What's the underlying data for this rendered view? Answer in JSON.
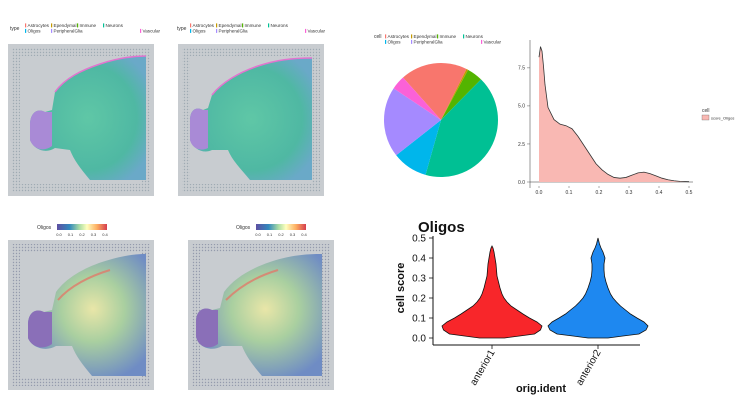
{
  "spatial_type_panels": {
    "legend_title": "type",
    "legend_items": [
      {
        "label": "Astrocytes",
        "color": "#f8766d"
      },
      {
        "label": "Ependymal",
        "color": "#c49a00"
      },
      {
        "label": "Immune",
        "color": "#53b400"
      },
      {
        "label": "Neurons",
        "color": "#00c094"
      },
      {
        "label": "Oligos",
        "color": "#00b6eb"
      },
      {
        "label": "PeripheralGlia",
        "color": "#a58aff"
      },
      {
        "label": "Vascular",
        "color": "#fb61d7"
      }
    ]
  },
  "spatial_score_panels": {
    "legend_title": "Oligos",
    "ticks": [
      "0.0",
      "0.1",
      "0.2",
      "0.3",
      "0.4"
    ]
  },
  "chart_data": [
    {
      "type": "pie",
      "legend_title": "cell",
      "categories": [
        "Astrocytes",
        "Ependymal",
        "Immune",
        "Neurons",
        "Oligos",
        "PeripheralGlia",
        "Vascular"
      ],
      "values": [
        0.19,
        0.005,
        0.045,
        0.42,
        0.1,
        0.2,
        0.04
      ],
      "colors": [
        "#f8766d",
        "#c49a00",
        "#53b400",
        "#00c094",
        "#00b6eb",
        "#a58aff",
        "#fb61d7"
      ]
    },
    {
      "type": "area",
      "legend_title": "cell",
      "series": [
        {
          "name": "score_Oligos",
          "x": [
            0.0,
            0.005,
            0.01,
            0.015,
            0.02,
            0.03,
            0.05,
            0.07,
            0.09,
            0.11,
            0.13,
            0.15,
            0.17,
            0.19,
            0.21,
            0.23,
            0.25,
            0.27,
            0.29,
            0.31,
            0.33,
            0.35,
            0.37,
            0.39,
            0.41,
            0.43,
            0.45,
            0.47,
            0.5
          ],
          "y": [
            8.2,
            8.9,
            8.6,
            7.6,
            6.4,
            4.9,
            4.1,
            3.8,
            3.7,
            3.5,
            3.0,
            2.4,
            1.8,
            1.2,
            0.8,
            0.5,
            0.3,
            0.25,
            0.3,
            0.45,
            0.6,
            0.65,
            0.55,
            0.4,
            0.25,
            0.15,
            0.08,
            0.04,
            0.02
          ]
        }
      ],
      "xticks": [
        "0.0",
        "0.1",
        "0.2",
        "0.3",
        "0.4",
        "0.5"
      ],
      "yticks": [
        "0.0",
        "2.5",
        "5.0",
        "7.5"
      ],
      "xlim": [
        0,
        0.5
      ],
      "ylim": [
        0,
        9.2
      ]
    },
    {
      "type": "violin",
      "title": "Oligos",
      "xlabel": "orig.ident",
      "ylabel": "cell score",
      "categories": [
        "anterior1",
        "anterior2"
      ],
      "colors": [
        "#f8766d",
        "#00b6eb"
      ],
      "ylim": [
        0,
        0.5
      ],
      "yticks": [
        "0.0",
        "0.1",
        "0.2",
        "0.3",
        "0.4",
        "0.5"
      ],
      "series": [
        {
          "name": "anterior1",
          "y": [
            0.0,
            0.01,
            0.02,
            0.04,
            0.06,
            0.08,
            0.1,
            0.12,
            0.14,
            0.16,
            0.18,
            0.2,
            0.22,
            0.25,
            0.28,
            0.31,
            0.34,
            0.37,
            0.4,
            0.43,
            0.45,
            0.46
          ],
          "width": [
            0.25,
            0.55,
            0.85,
            0.97,
            1.0,
            0.9,
            0.75,
            0.62,
            0.5,
            0.38,
            0.3,
            0.24,
            0.2,
            0.16,
            0.13,
            0.1,
            0.09,
            0.08,
            0.06,
            0.04,
            0.02,
            0.0
          ]
        },
        {
          "name": "anterior2",
          "y": [
            0.0,
            0.01,
            0.02,
            0.04,
            0.06,
            0.08,
            0.1,
            0.12,
            0.14,
            0.16,
            0.18,
            0.2,
            0.22,
            0.25,
            0.28,
            0.31,
            0.34,
            0.37,
            0.4,
            0.43,
            0.45,
            0.47,
            0.49,
            0.5
          ],
          "width": [
            0.2,
            0.5,
            0.82,
            0.96,
            1.0,
            0.92,
            0.78,
            0.65,
            0.55,
            0.45,
            0.37,
            0.3,
            0.25,
            0.2,
            0.16,
            0.13,
            0.12,
            0.12,
            0.14,
            0.1,
            0.06,
            0.03,
            0.01,
            0.0
          ]
        }
      ]
    }
  ]
}
